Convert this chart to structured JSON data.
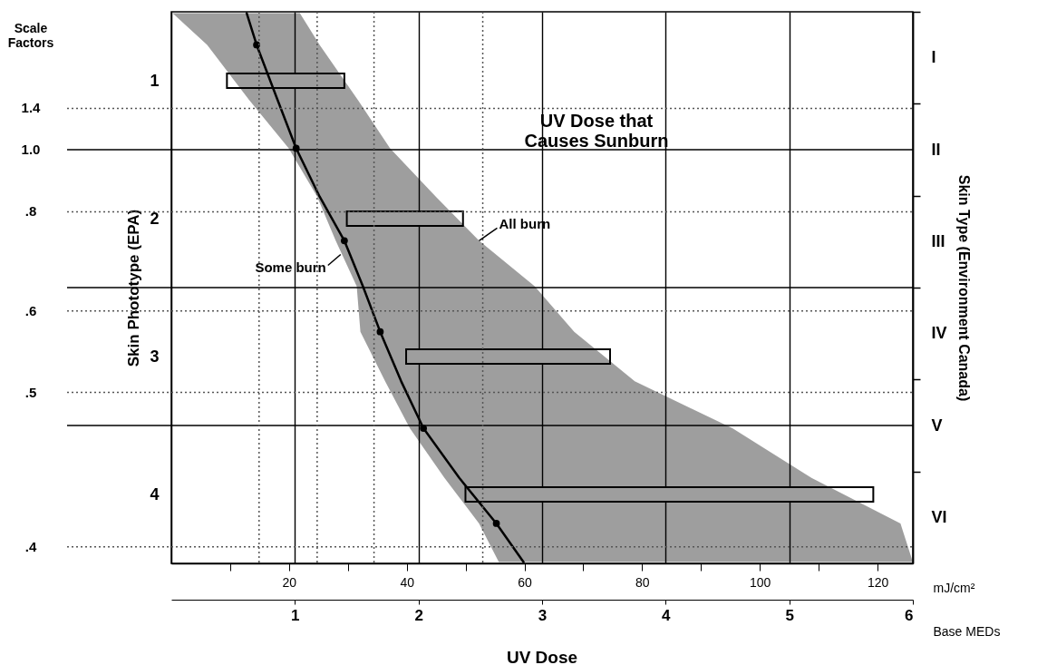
{
  "chart_data": {
    "type": "bar",
    "orientation": "horizontal",
    "title": "UV Dose that Causes Sunburn",
    "xlabel": "Base MEDs",
    "x2label": "mJ/cm²",
    "ylabel": "Skin Phototype (EPA)",
    "y2label": "Skin Type (Environment Canada)",
    "xlim": [
      0,
      6
    ],
    "xticks": [
      1,
      2,
      3,
      4,
      5,
      6
    ],
    "x2lim": [
      0,
      126
    ],
    "x2ticks": [
      {
        "value": 10,
        "label": null
      },
      20,
      {
        "value": 30,
        "label": null
      },
      40,
      {
        "value": 50,
        "label": null
      },
      60,
      {
        "value": 70,
        "label": null
      },
      80,
      {
        "value": 90,
        "label": null
      },
      100,
      {
        "value": 110,
        "label": null
      },
      120
    ],
    "ylim": [
      4.5,
      0.5
    ],
    "yticks": [
      1,
      2,
      3,
      4
    ],
    "y2_categories": [
      "I",
      "II",
      "III",
      "IV",
      "V",
      "VI"
    ],
    "grid": "x",
    "series": [
      {
        "color": "#ffffff",
        "x": [
          1,
          2,
          3,
          4
        ],
        "base": [
          0.45,
          1.42,
          1.9,
          2.38
        ],
        "values": [
          0.95,
          0.94,
          1.65,
          3.3
        ]
      },
      {
        "type": "line",
        "color": "#000000",
        "line_style": "solid",
        "x": [
          0.51,
          0.74,
          1.14,
          1.49,
          1.84,
          2.16,
          2.49,
          2.82,
          3.18,
          3.52,
          3.88,
          4.21,
          4.49
        ],
        "values": [
          0.61,
          0.69,
          0.86,
          1.01,
          1.2,
          1.4,
          1.55,
          1.69,
          1.86,
          2.04,
          2.33,
          2.63,
          2.85
        ],
        "lower": [
          0.01,
          0.29,
          0.63,
          0.95,
          1.18,
          1.33,
          1.5,
          1.53,
          1.73,
          1.93,
          2.21,
          2.49,
          2.65
        ],
        "upper": [
          1.04,
          1.2,
          1.51,
          1.77,
          2.14,
          2.49,
          2.94,
          3.26,
          3.75,
          4.54,
          5.18,
          5.9,
          6.0
        ]
      },
      {
        "type": "scatter",
        "color": "#000000",
        "marker": "circle",
        "x": [
          0.74,
          1.49,
          2.16,
          2.82,
          3.52,
          4.21
        ],
        "values": [
          0.69,
          1.01,
          1.4,
          1.69,
          2.04,
          2.63
        ]
      }
    ],
    "ref_lines": [
      {
        "axis": "y",
        "value": 1.2,
        "color": "#555555",
        "line_style": "dotted"
      },
      {
        "axis": "y",
        "value": 1.5,
        "color": "#000000",
        "line_style": "solid"
      },
      {
        "axis": "y",
        "value": 1.95,
        "color": "#555555",
        "line_style": "dotted"
      },
      {
        "axis": "y",
        "value": 2.67,
        "color": "#555555",
        "line_style": "dotted"
      },
      {
        "axis": "y",
        "value": 3.26,
        "color": "#555555",
        "line_style": "dotted"
      },
      {
        "axis": "y",
        "value": 4.38,
        "color": "#555555",
        "line_style": "dotted"
      },
      {
        "axis": "y",
        "value": 2.5,
        "color": "#000000",
        "line_style": "solid"
      },
      {
        "axis": "y",
        "value": 3.5,
        "color": "#000000",
        "line_style": "solid"
      },
      {
        "axis": "x",
        "value": 0.71,
        "color": "#555555",
        "line_style": "dotted"
      },
      {
        "axis": "x",
        "value": 1.18,
        "color": "#555555",
        "line_style": "dotted"
      },
      {
        "axis": "x",
        "value": 1.64,
        "color": "#555555",
        "line_style": "dotted"
      },
      {
        "axis": "x",
        "value": 2.52,
        "color": "#555555",
        "line_style": "dotted"
      }
    ],
    "annotations": [
      "UV Dose",
      "Scale Factors",
      "1.4",
      "1.0",
      ".8",
      ".6",
      ".5",
      ".4",
      {
        "text": "Some burn",
        "x": 1.37,
        "y": 2.26
      },
      {
        "text": "All burn",
        "x": 2.49,
        "y": 2.16
      }
    ]
  }
}
